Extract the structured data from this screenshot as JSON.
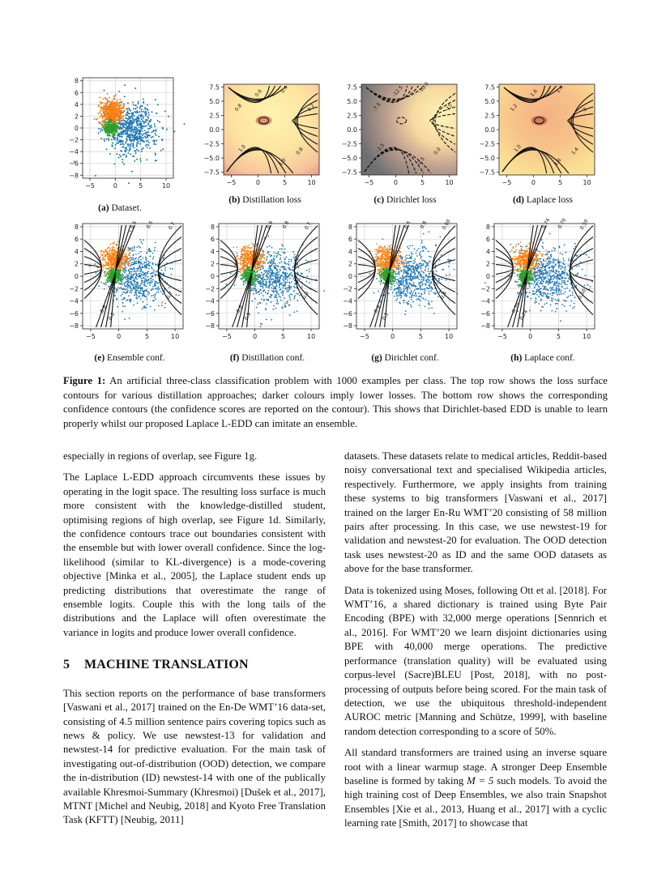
{
  "figure": {
    "panels": [
      {
        "id": "a",
        "caption_label": "(a)",
        "caption_text": "Dataset.",
        "kind": "scatter"
      },
      {
        "id": "b",
        "caption_label": "(b)",
        "caption_text": "Distillation loss",
        "kind": "loss",
        "theme": "distill",
        "labels": [
          "0.6",
          "0.4",
          "0.8",
          "1.0",
          "0.8",
          "1.0",
          "0.2"
        ]
      },
      {
        "id": "c",
        "caption_label": "(c)",
        "caption_text": "Dirichlet loss",
        "kind": "loss",
        "theme": "dirichlet",
        "labels": [
          "-12.5",
          "-10.0",
          "-7.5",
          "-2.5",
          "0.0",
          "-2.5",
          "-15"
        ]
      },
      {
        "id": "d",
        "caption_label": "(d)",
        "caption_text": "Laplace loss",
        "kind": "loss",
        "theme": "laplace",
        "labels": [
          "1.6",
          "1.4",
          "1.2",
          "1.0",
          "1.4",
          "1.6",
          "2"
        ]
      },
      {
        "id": "e",
        "caption_label": "(e)",
        "caption_text": "Ensemble conf.",
        "kind": "conf",
        "labels": [
          "0.5",
          "0.6",
          "0.7",
          "0.8",
          "0.6",
          "0.7"
        ]
      },
      {
        "id": "f",
        "caption_label": "(f)",
        "caption_text": "Distillation conf.",
        "kind": "conf",
        "labels": [
          "0.9",
          "0.8",
          "0.7",
          "0.6",
          "0.9",
          "0.9"
        ]
      },
      {
        "id": "g",
        "caption_label": "(g)",
        "caption_text": "Dirichlet conf.",
        "kind": "conf",
        "labels": [
          "0.6",
          "0.8",
          "0.60",
          "0.4",
          "0.5",
          "0.4"
        ]
      },
      {
        "id": "h",
        "caption_label": "(h)",
        "caption_text": "Laplace conf.",
        "kind": "conf",
        "labels": [
          "0.74",
          "0.70",
          "0.50",
          "0.70",
          "0.74",
          "0.50"
        ]
      }
    ],
    "axes": {
      "scatter": {
        "xticks": [
          "−5",
          "0",
          "5",
          "10"
        ],
        "yticks": [
          "8",
          "6",
          "4",
          "2",
          "0",
          "−2",
          "−4",
          "−6",
          "−8"
        ]
      },
      "loss": {
        "xticks": [
          "−5",
          "0",
          "5",
          "10"
        ],
        "yticks": [
          "7.5",
          "5.0",
          "2.5",
          "0.0",
          "−2.5",
          "−5.0",
          "−7.5"
        ]
      },
      "conf": {
        "xticks": [
          "−5",
          "0",
          "5",
          "10"
        ],
        "yticks": [
          "8",
          "6",
          "4",
          "2",
          "0",
          "−2",
          "−4",
          "−6",
          "−8"
        ]
      }
    },
    "colors": {
      "class1": "#1f77b4",
      "class2": "#ff7f0e",
      "class3": "#2ca02c",
      "grid": "#d0d0d0"
    },
    "caption_label": "Figure 1:",
    "caption_text": "An artificial three-class classification problem with 1000 examples per class. The top row shows the loss surface contours for various distillation approaches; darker colours imply lower losses. The bottom row shows the corresponding confidence contours (the confidence scores are reported on the contour). This shows that Dirichlet-based EDD is unable to learn properly whilst our proposed Laplace L-EDD can imitate an ensemble."
  },
  "left_column": {
    "p1": "especially in regions of overlap, see Figure 1g.",
    "p2": "The Laplace L-EDD approach circumvents these issues by operating in the logit space. The resulting loss surface is much more consistent with the knowledge-distilled student, optimising regions of high overlap, see Figure 1d. Similarly, the confidence contours trace out boundaries consistent with the ensemble but with lower overall confidence. Since the log-likelihood (similar to KL-divergence) is a mode-covering objective [Minka et al., 2005], the Laplace student ends up predicting distributions that overestimate the range of ensemble logits. Couple this with the long tails of the distributions and the Laplace will often overestimate the variance in logits and produce lower overall confidence.",
    "section_number": "5",
    "section_title": "MACHINE TRANSLATION",
    "p3": "This section reports on the performance of base transformers [Vaswani et al., 2017] trained on the En-De WMT’16 data-set, consisting of 4.5 million sentence pairs covering topics such as news & policy. We use newstest-13 for validation and newstest-14 for predictive evaluation. For the main task of investigating out-of-distribution (OOD) detection, we compare the in-distribution (ID) newstest-14 with one of the publically available Khresmoi-Summary (Khresmoi) [Dušek et al., 2017], MTNT [Michel and Neubig, 2018] and Kyoto Free Translation Task (KFTT) [Neubig, 2011]"
  },
  "right_column": {
    "p1": "datasets. These datasets relate to medical articles, Reddit-based noisy conversational text and specialised Wikipedia articles, respectively. Furthermore, we apply insights from training these systems to big transformers [Vaswani et al., 2017] trained on the larger En-Ru WMT’20 consisting of 58 million pairs after processing. In this case, we use newstest-19 for validation and newstest-20 for evaluation. The OOD detection task uses newstest-20 as ID and the same OOD datasets as above for the base transformer.",
    "p2": "Data is tokenized using Moses, following Ott et al. [2018]. For WMT’16, a shared dictionary is trained using Byte Pair Encoding (BPE) with 32,000 merge operations [Sennrich et al., 2016]. For WMT’20 we learn disjoint dictionaries using BPE with 40,000 merge operations. The predictive performance (translation quality) will be evaluated using corpus-level (Sacre)BLEU [Post, 2018], with no post-processing of outputs before being scored. For the main task of detection, we use the ubiquitous threshold-independent AUROC metric [Manning and Schütze, 1999], with baseline random detection corresponding to a score of 50%.",
    "p3_pre": "All standard transformers are trained using an inverse square root with a linear warmup stage. A stronger Deep Ensemble baseline is formed by taking ",
    "p3_math": "M = 5",
    "p3_post": " such models. To avoid the high training cost of Deep Ensembles, we also train Snapshot Ensembles [Xie et al., 2013, Huang et al., 2017] with a cyclic learning rate [Smith, 2017] to showcase that"
  }
}
